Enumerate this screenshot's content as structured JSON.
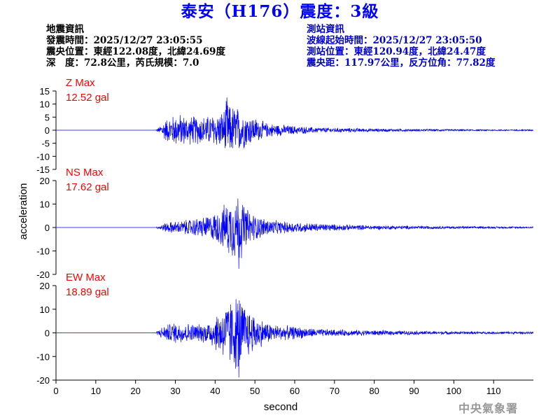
{
  "title": "泰安（H176）震度：3級",
  "earthquake_info": {
    "heading": "地震資訊",
    "origin_time": "發震時間：2025/12/27 23:05:55",
    "epicenter": "震央位置：東經122.08度，北緯24.69度",
    "depth_magnitude": "深　度：72.8公里，芮氏規模：7.0"
  },
  "station_info": {
    "heading": "測站資訊",
    "wave_start": "波線起始時間：2025/12/27 23:05:50",
    "station_location": "測站位置：東經120.94度，北緯24.47度",
    "distance_azimuth": "震央距：117.97公里，反方位角：77.82度"
  },
  "watermark": "中央氣象署",
  "chart_data": {
    "type": "line",
    "xlabel": "second",
    "ylabel": "acceleration",
    "xlim": [
      0,
      120
    ],
    "xticks": [
      0,
      10,
      20,
      30,
      40,
      50,
      60,
      70,
      80,
      90,
      100,
      110
    ],
    "line_color": "#0000ff",
    "label_color": "#ff0000",
    "panels": [
      {
        "component": "Z",
        "max_label": "Z Max",
        "max_value": "12.52 gal",
        "ylim": [
          -15,
          15
        ],
        "yticks": [
          -15,
          -10,
          -5,
          0,
          5,
          10,
          15
        ],
        "peak": 12.52,
        "envelope": [
          [
            0,
            0
          ],
          [
            25,
            0
          ],
          [
            26,
            1.5
          ],
          [
            27,
            4
          ],
          [
            29,
            6
          ],
          [
            31,
            7
          ],
          [
            33,
            6
          ],
          [
            36,
            6
          ],
          [
            38,
            6
          ],
          [
            40,
            7
          ],
          [
            42,
            8
          ],
          [
            43,
            12.5
          ],
          [
            44,
            10
          ],
          [
            45,
            11
          ],
          [
            46,
            9
          ],
          [
            47,
            8
          ],
          [
            49,
            6
          ],
          [
            51,
            4.5
          ],
          [
            53,
            3
          ],
          [
            56,
            2.5
          ],
          [
            60,
            1.8
          ],
          [
            65,
            1.2
          ],
          [
            70,
            1.0
          ],
          [
            80,
            0.7
          ],
          [
            90,
            0.5
          ],
          [
            100,
            0.4
          ],
          [
            110,
            0.3
          ],
          [
            120,
            0.3
          ]
        ]
      },
      {
        "component": "NS",
        "max_label": "NS Max",
        "max_value": "17.62 gal",
        "ylim": [
          -20,
          20
        ],
        "yticks": [
          -20,
          -10,
          0,
          10,
          20
        ],
        "peak": 17.62,
        "envelope": [
          [
            0,
            0
          ],
          [
            25,
            0
          ],
          [
            26,
            1
          ],
          [
            28,
            2.5
          ],
          [
            31,
            3
          ],
          [
            34,
            4
          ],
          [
            37,
            5
          ],
          [
            39,
            6
          ],
          [
            41,
            8
          ],
          [
            43,
            12
          ],
          [
            44,
            14
          ],
          [
            45,
            15
          ],
          [
            46,
            17.6
          ],
          [
            47,
            12
          ],
          [
            48,
            9
          ],
          [
            50,
            6
          ],
          [
            53,
            4
          ],
          [
            56,
            3
          ],
          [
            60,
            2.5
          ],
          [
            65,
            2
          ],
          [
            70,
            1.5
          ],
          [
            80,
            1
          ],
          [
            90,
            0.8
          ],
          [
            100,
            0.6
          ],
          [
            110,
            0.5
          ],
          [
            120,
            0.4
          ]
        ]
      },
      {
        "component": "EW",
        "max_label": "EW Max",
        "max_value": "18.89 gal",
        "ylim": [
          -20,
          20
        ],
        "yticks": [
          -20,
          -10,
          0,
          10,
          20
        ],
        "peak": 18.89,
        "envelope": [
          [
            0,
            0
          ],
          [
            25,
            0
          ],
          [
            26,
            2
          ],
          [
            28,
            4
          ],
          [
            30,
            5
          ],
          [
            33,
            4.5
          ],
          [
            36,
            4
          ],
          [
            38,
            5
          ],
          [
            40,
            8
          ],
          [
            42,
            12
          ],
          [
            44,
            16
          ],
          [
            45,
            17
          ],
          [
            46,
            18.9
          ],
          [
            47,
            14
          ],
          [
            49,
            10
          ],
          [
            51,
            7
          ],
          [
            53,
            5
          ],
          [
            56,
            3.5
          ],
          [
            60,
            3
          ],
          [
            65,
            2
          ],
          [
            70,
            1.5
          ],
          [
            80,
            1.2
          ],
          [
            90,
            0.9
          ],
          [
            100,
            0.7
          ],
          [
            110,
            0.6
          ],
          [
            120,
            0.5
          ]
        ]
      }
    ]
  }
}
